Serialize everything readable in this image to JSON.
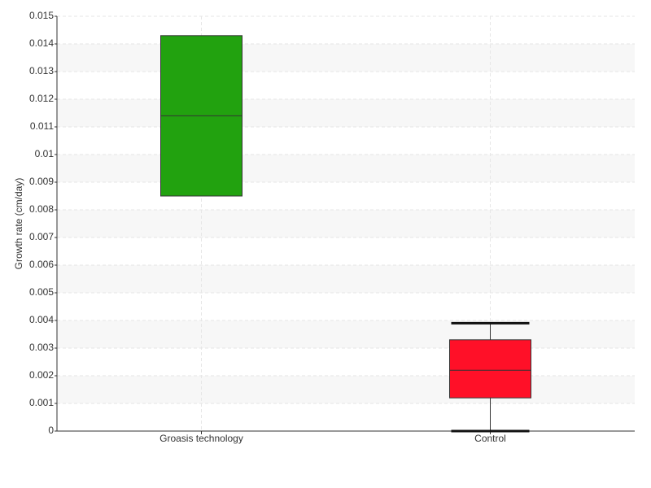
{
  "chart_data": {
    "type": "box",
    "y_label": "Growth rate (cm/day)",
    "categories": [
      "Groasis technology",
      "Control"
    ],
    "boxes": [
      {
        "min": 0.0085,
        "q1": 0.0085,
        "median": 0.0114,
        "q3": 0.0143,
        "max": 0.0143,
        "color": "#22a20f"
      },
      {
        "min": 0,
        "q1": 0.0012,
        "median": 0.0022,
        "q3": 0.0033,
        "max": 0.0039,
        "color": "#ff1028"
      }
    ],
    "ylim": [
      0,
      0.015
    ],
    "yticks": [
      0,
      0.001,
      0.002,
      0.003,
      0.004,
      0.005,
      0.006,
      0.007,
      0.008,
      0.009,
      0.01,
      0.011,
      0.012,
      0.013,
      0.014,
      0.015
    ],
    "grid": true
  }
}
